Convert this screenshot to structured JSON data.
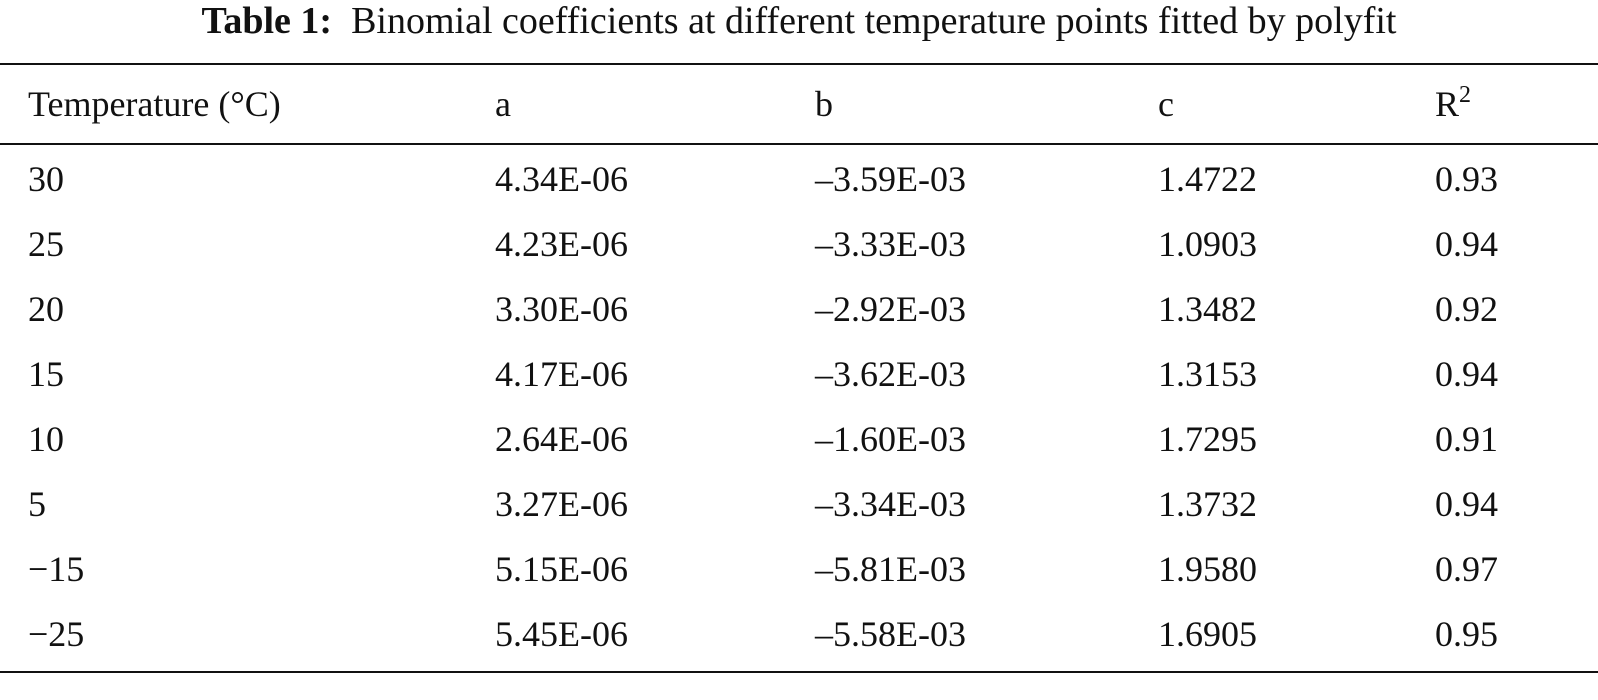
{
  "caption": {
    "label": "Table 1:",
    "text": "Binomial coefficients at different temperature points fitted by polyfit"
  },
  "table": {
    "headers": {
      "temperature": "Temperature (°C)",
      "a": "a",
      "b": "b",
      "c": "c",
      "r2_base": "R",
      "r2_sup": "2"
    },
    "rows": [
      {
        "temperature": "30",
        "a": "4.34E-06",
        "b": "–3.59E-03",
        "c": "1.4722",
        "r2": "0.93"
      },
      {
        "temperature": "25",
        "a": "4.23E-06",
        "b": "–3.33E-03",
        "c": "1.0903",
        "r2": "0.94"
      },
      {
        "temperature": "20",
        "a": "3.30E-06",
        "b": "–2.92E-03",
        "c": "1.3482",
        "r2": "0.92"
      },
      {
        "temperature": "15",
        "a": "4.17E-06",
        "b": "–3.62E-03",
        "c": "1.3153",
        "r2": "0.94"
      },
      {
        "temperature": "10",
        "a": "2.64E-06",
        "b": "–1.60E-03",
        "c": "1.7295",
        "r2": "0.91"
      },
      {
        "temperature": "5",
        "a": "3.27E-06",
        "b": "–3.34E-03",
        "c": "1.3732",
        "r2": "0.94"
      },
      {
        "temperature": "−15",
        "a": "5.15E-06",
        "b": "–5.81E-03",
        "c": "1.9580",
        "r2": "0.97"
      },
      {
        "temperature": "−25",
        "a": "5.45E-06",
        "b": "–5.58E-03",
        "c": "1.6905",
        "r2": "0.95"
      }
    ]
  }
}
